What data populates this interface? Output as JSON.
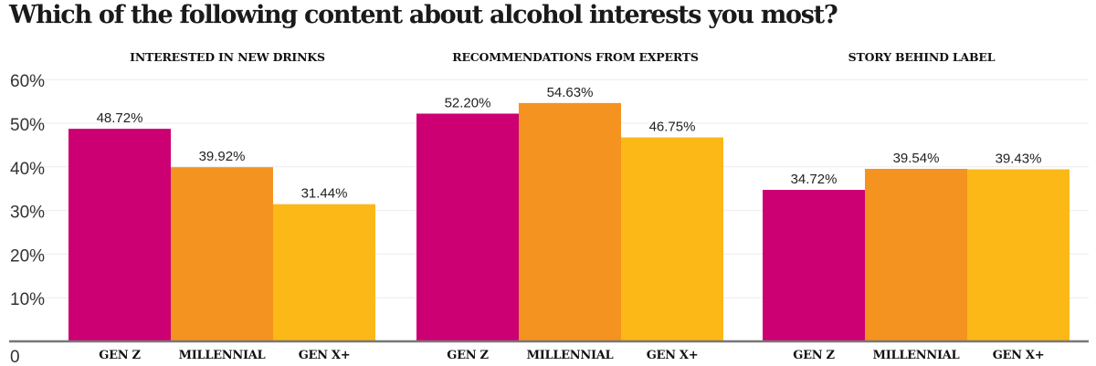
{
  "title": "Which of the following content about alcohol interests you most?",
  "colors": {
    "gen_z": "#cc0073",
    "millennial": "#f59320",
    "gen_x": "#fbb817",
    "axis": "#777777",
    "grid": "#ececec"
  },
  "chart_data": {
    "type": "bar",
    "title": "Which of the following content about alcohol interests you most?",
    "ylim": [
      0,
      60
    ],
    "yticks": [
      "0",
      "10%",
      "20%",
      "30%",
      "40%",
      "50%",
      "60%"
    ],
    "grid": true,
    "categories": [
      "GEN Z",
      "MILLENNIAL",
      "GEN X+"
    ],
    "panels": [
      {
        "title": "INTERESTED IN NEW DRINKS",
        "values": [
          48.72,
          39.92,
          31.44
        ],
        "labels": [
          "48.72%",
          "39.92%",
          "31.44%"
        ]
      },
      {
        "title": "RECOMMENDATIONS FROM EXPERTS",
        "values": [
          52.2,
          54.63,
          46.75
        ],
        "labels": [
          "52.20%",
          "54.63%",
          "46.75%"
        ]
      },
      {
        "title": "STORY BEHIND LABEL",
        "values": [
          34.72,
          39.54,
          39.43
        ],
        "labels": [
          "34.72%",
          "39.54%",
          "39.43%"
        ]
      }
    ]
  }
}
